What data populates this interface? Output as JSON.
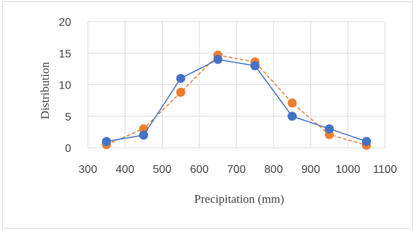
{
  "chart_data": {
    "type": "line",
    "xlabel": "Precipitation (mm)",
    "ylabel": "Distribution",
    "xlim": [
      300,
      1100
    ],
    "ylim": [
      0,
      20
    ],
    "xticks": [
      300,
      400,
      500,
      600,
      700,
      800,
      900,
      1000,
      1100
    ],
    "yticks": [
      0,
      5,
      10,
      15,
      20
    ],
    "grid": true,
    "legend": "none",
    "series": [
      {
        "color": "#4472c4",
        "line_style": "solid",
        "x": [
          350,
          450,
          550,
          650,
          750,
          850,
          950,
          1050
        ],
        "values": [
          1,
          2,
          11,
          14,
          13,
          5,
          3,
          1
        ]
      },
      {
        "color": "#ed7d31",
        "line_style": "dashed",
        "x": [
          350,
          450,
          550,
          650,
          750,
          850,
          950,
          1050
        ],
        "values": [
          0.5,
          3,
          8.8,
          14.7,
          13.6,
          7.1,
          2.1,
          0.4
        ]
      }
    ]
  }
}
